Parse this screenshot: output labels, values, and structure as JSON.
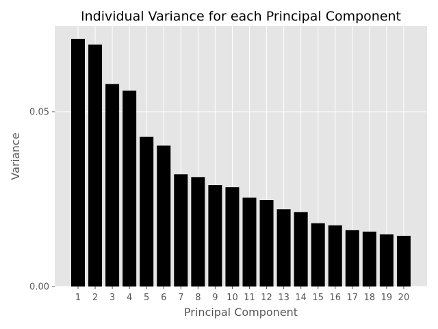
{
  "chart_data": {
    "type": "bar",
    "title": "Individual Variance for each Principal Component",
    "xlabel": "Principal Component",
    "ylabel": "Variance",
    "categories": [
      "1",
      "2",
      "3",
      "4",
      "5",
      "6",
      "7",
      "8",
      "9",
      "10",
      "11",
      "12",
      "13",
      "14",
      "15",
      "16",
      "17",
      "18",
      "19",
      "20"
    ],
    "values": [
      0.0708,
      0.0692,
      0.0579,
      0.056,
      0.0428,
      0.0403,
      0.0321,
      0.0313,
      0.029,
      0.0284,
      0.0254,
      0.0247,
      0.0221,
      0.0213,
      0.0181,
      0.0175,
      0.0161,
      0.0157,
      0.0149,
      0.0145
    ],
    "yticks": [
      0.0,
      0.05
    ],
    "ytick_labels": [
      "0.00",
      "0.05"
    ],
    "ylim": [
      0,
      0.0745
    ],
    "grid": true,
    "colors": {
      "bar": "#000000",
      "plot_background": "#e5e5e5",
      "grid": "#ffffff",
      "text": "#555555"
    }
  }
}
